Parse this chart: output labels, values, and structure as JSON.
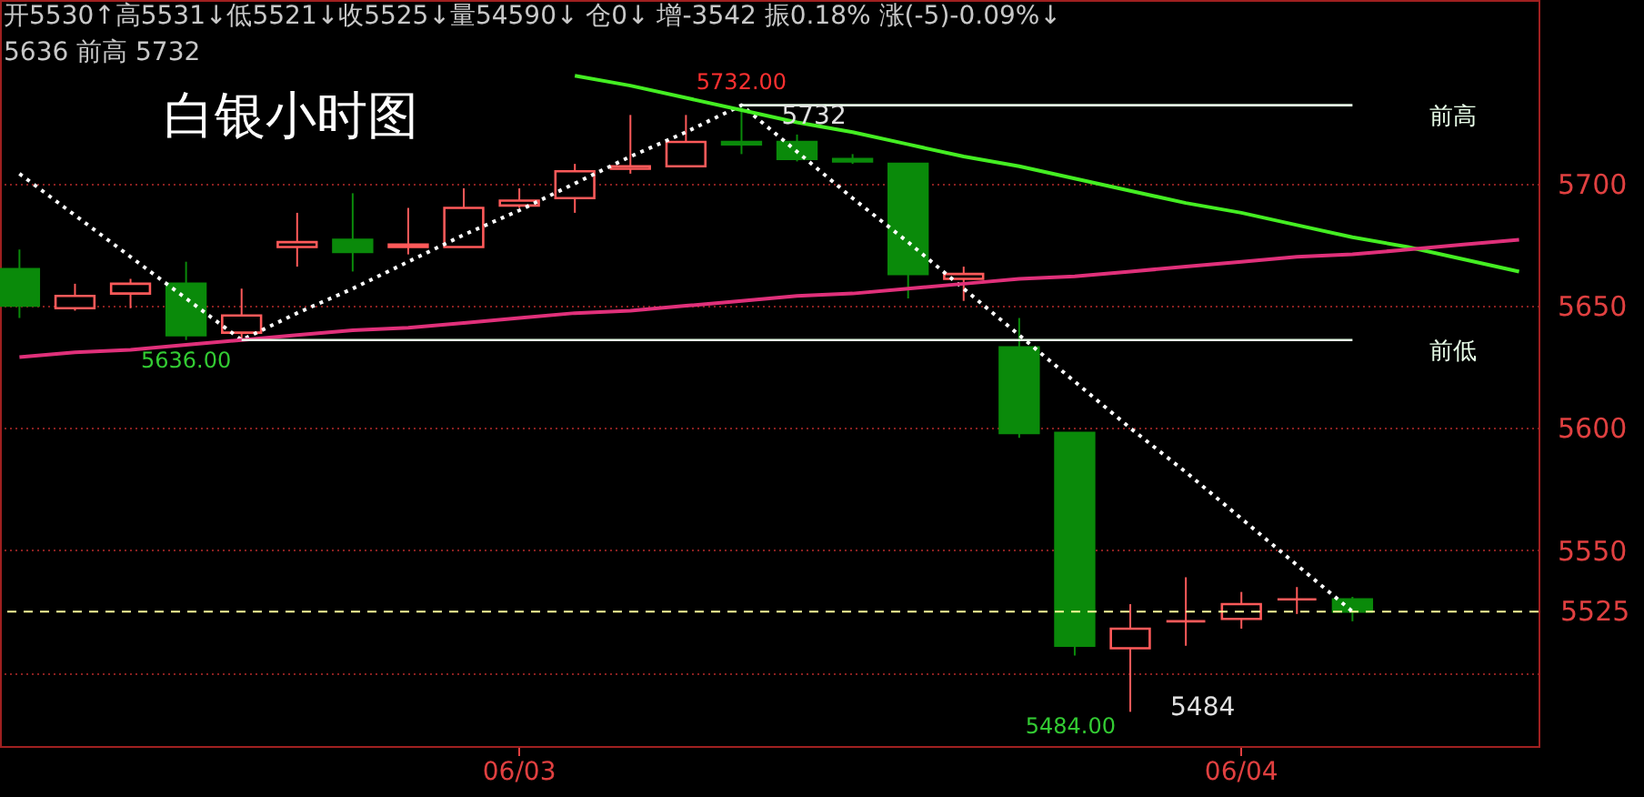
{
  "chart_data": {
    "type": "candlestick",
    "title": "白银小时图",
    "categories": [
      null,
      null,
      null,
      null,
      null,
      null,
      null,
      null,
      null,
      "06/03",
      null,
      null,
      null,
      null,
      null,
      null,
      null,
      null,
      null,
      null,
      null,
      null,
      "06/04",
      null,
      null,
      null,
      null,
      null
    ],
    "ohlc": [
      [
        5665,
        5673,
        5645,
        5650
      ],
      [
        5649,
        5659,
        5648,
        5654
      ],
      [
        5655,
        5661,
        5649,
        5659
      ],
      [
        5659,
        5668,
        5636,
        5638
      ],
      [
        5639,
        5657,
        5636,
        5646
      ],
      [
        5674,
        5688,
        5666,
        5676
      ],
      [
        5677,
        5696,
        5664,
        5672
      ],
      [
        5674,
        5690,
        5671,
        5675
      ],
      [
        5674,
        5698,
        5674,
        5690
      ],
      [
        5691,
        5698,
        5690,
        5693
      ],
      [
        5694,
        5708,
        5688,
        5705
      ],
      [
        5706,
        5728,
        5704,
        5707
      ],
      [
        5707,
        5728,
        5707,
        5717
      ],
      [
        5717,
        5732,
        5712,
        5716
      ],
      [
        5717,
        5720,
        5709,
        5710
      ],
      [
        5710,
        5712,
        5708,
        5709
      ],
      [
        5708,
        5708,
        5653,
        5663
      ],
      [
        5661,
        5666,
        5652,
        5663
      ],
      [
        5633,
        5645,
        5596,
        5598
      ],
      [
        5598,
        5598,
        5507,
        5511
      ],
      [
        5510,
        5528,
        5484,
        5518
      ],
      [
        5521,
        5539,
        5511,
        5521
      ],
      [
        5522,
        5533,
        5518,
        5528
      ],
      [
        5530,
        5535,
        5524,
        5530
      ],
      [
        5530,
        5531,
        5521,
        5525
      ],
      null,
      null,
      null
    ],
    "colors": [
      "#0a8a0a",
      "#ff5a5a",
      "#ff5a5a",
      "#0a8a0a",
      "#ff5a5a",
      "#ff5a5a",
      "#0a8a0a",
      "#ff5a5a",
      "#ff5a5a",
      "#ff5a5a",
      "#ff5a5a",
      "#ff5a5a",
      "#ff5a5a",
      "#0a8a0a",
      "#0a8a0a",
      "#0a8a0a",
      "#0a8a0a",
      "#ff5a5a",
      "#0a8a0a",
      "#0a8a0a",
      "#ff5a5a",
      "#ff5a5a",
      "#ff5a5a",
      "#ff5a5a",
      "#0a8a0a",
      null,
      null,
      null
    ],
    "series": [
      {
        "type": "line",
        "values": [
          5704,
          5687,
          5670,
          5653,
          5636,
          5647,
          5657,
          5668,
          5679,
          5689,
          5700,
          5711,
          5721,
          5732,
          5713,
          5694,
          5676,
          5657,
          5638,
          5619,
          5600,
          5582,
          5563,
          5544,
          5525,
          null,
          null,
          null
        ],
        "color": "#ffffff",
        "line_style": "dotted"
      },
      {
        "type": "line",
        "values": [
          null,
          null,
          null,
          null,
          null,
          null,
          null,
          null,
          null,
          null,
          5744,
          5740,
          5735,
          5730,
          5725,
          5721,
          5716,
          5711,
          5707,
          5702,
          5697,
          5692,
          5688,
          5683,
          5678,
          5674,
          5669,
          5664
        ],
        "color": "#44ee22",
        "line_style": "solid"
      },
      {
        "type": "line",
        "values": [
          5629,
          5631,
          5632,
          5634,
          5636,
          5638,
          5640,
          5641,
          5643,
          5645,
          5647,
          5648,
          5650,
          5652,
          5654,
          5655,
          5657,
          5659,
          5661,
          5662,
          5664,
          5666,
          5668,
          5670,
          5671,
          5673,
          5675,
          5677
        ],
        "color": "#e0307a",
        "line_style": "solid"
      },
      {
        "type": "line",
        "name": "前高",
        "values": [
          null,
          null,
          null,
          null,
          null,
          null,
          null,
          null,
          null,
          null,
          null,
          null,
          null,
          5732,
          5732,
          5732,
          5732,
          5732,
          5732,
          5732,
          5732,
          5732,
          5732,
          5732,
          5732,
          null,
          null,
          null
        ],
        "color": "#e8ffe8",
        "line_style": "solid"
      },
      {
        "type": "line",
        "name": "前低",
        "values": [
          null,
          null,
          null,
          null,
          5636,
          5636,
          5636,
          5636,
          5636,
          5636,
          5636,
          5636,
          5636,
          5636,
          5636,
          5636,
          5636,
          5636,
          5636,
          5636,
          5636,
          5636,
          5636,
          5636,
          5636,
          null,
          null,
          null
        ],
        "color": "#e8ffe8",
        "line_style": "solid"
      }
    ],
    "ylim": [
      5470,
      5775
    ],
    "yticks": [
      {
        "value": 5500,
        "label": null
      },
      5550,
      5600,
      5650,
      5700
    ],
    "grid": "y",
    "ref_lines": [
      {
        "axis": "y",
        "value": 5525,
        "label": "5525",
        "color": "#ffff99",
        "line_style": "dashed"
      }
    ],
    "annotations": [
      "开5530↑高5531↓低5521↓收5525↓量54590↓ 仓0↓ 增-3542 振0.18% 涨(-5)-0.09%↓",
      "5636 前高 5732",
      {
        "text": "5732.00",
        "y": 5732
      },
      {
        "text": "5732",
        "y": 5732
      },
      {
        "text": "5636.00",
        "y": 5636
      },
      "5484.00",
      "5484"
    ]
  }
}
